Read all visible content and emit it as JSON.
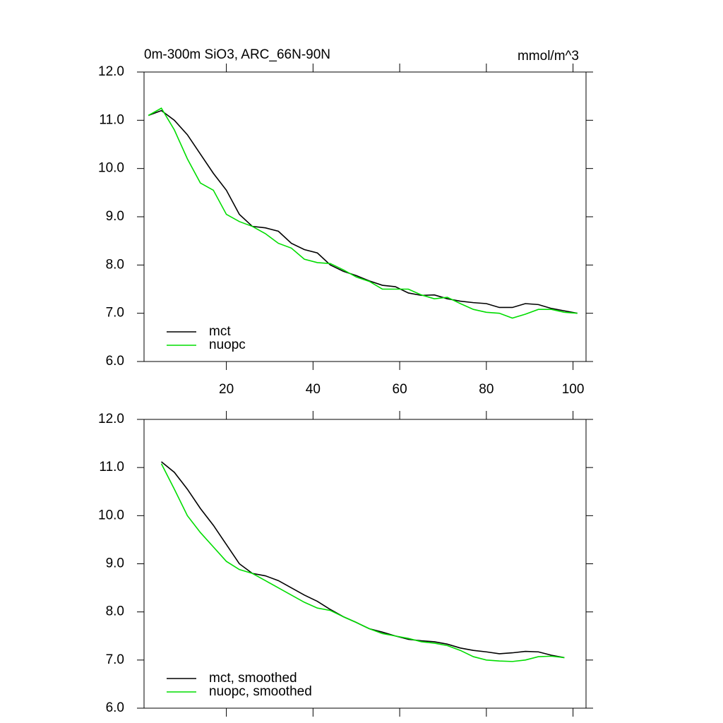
{
  "chart_data": [
    {
      "type": "line",
      "title": "0m-300m SiO3, ARC_66N-90N",
      "subtitle": "mmol/m^3",
      "x": [
        2,
        5,
        8,
        11,
        14,
        17,
        20,
        23,
        26,
        29,
        32,
        35,
        38,
        41,
        44,
        47,
        50,
        53,
        56,
        59,
        62,
        65,
        68,
        71,
        74,
        77,
        80,
        83,
        86,
        89,
        92,
        95,
        98,
        101
      ],
      "series": [
        {
          "name": "mct",
          "color": "#000000",
          "values": [
            11.1,
            11.2,
            11.0,
            10.7,
            10.3,
            9.9,
            9.55,
            9.05,
            8.8,
            8.77,
            8.7,
            8.45,
            8.32,
            8.25,
            8.0,
            7.87,
            7.78,
            7.67,
            7.58,
            7.55,
            7.42,
            7.37,
            7.38,
            7.3,
            7.25,
            7.22,
            7.2,
            7.12,
            7.12,
            7.2,
            7.18,
            7.1,
            7.05,
            7.0
          ]
        },
        {
          "name": "nuopc",
          "color": "#00dd00",
          "values": [
            11.1,
            11.25,
            10.8,
            10.2,
            9.7,
            9.55,
            9.05,
            8.9,
            8.8,
            8.65,
            8.45,
            8.35,
            8.12,
            8.05,
            8.03,
            7.9,
            7.75,
            7.66,
            7.5,
            7.5,
            7.5,
            7.38,
            7.3,
            7.33,
            7.2,
            7.08,
            7.02,
            7.0,
            6.9,
            6.98,
            7.08,
            7.08,
            7.02,
            7.0
          ]
        }
      ],
      "xlim": [
        1,
        103
      ],
      "xticks": [
        20,
        40,
        60,
        80,
        100
      ],
      "ylim": [
        6,
        12
      ],
      "yticks": [
        {
          "value": 6,
          "label": "6.0"
        },
        {
          "value": 7,
          "label": "7.0"
        },
        {
          "value": 8,
          "label": "8.0"
        },
        {
          "value": 9,
          "label": "9.0"
        },
        {
          "value": 10,
          "label": "10.0"
        },
        {
          "value": 11,
          "label": "11.0"
        },
        {
          "value": 12,
          "label": "12.0"
        }
      ],
      "legend": "lower-left"
    },
    {
      "type": "line",
      "x": [
        5,
        8,
        11,
        14,
        17,
        20,
        23,
        26,
        29,
        32,
        35,
        38,
        41,
        44,
        47,
        50,
        53,
        56,
        59,
        62,
        65,
        68,
        71,
        74,
        77,
        80,
        83,
        86,
        89,
        92,
        95,
        98
      ],
      "series": [
        {
          "name": "mct, smoothed",
          "color": "#000000",
          "values": [
            11.12,
            10.9,
            10.55,
            10.15,
            9.8,
            9.4,
            9.0,
            8.8,
            8.75,
            8.65,
            8.5,
            8.35,
            8.22,
            8.05,
            7.9,
            7.78,
            7.65,
            7.58,
            7.5,
            7.43,
            7.4,
            7.38,
            7.33,
            7.25,
            7.2,
            7.17,
            7.13,
            7.15,
            7.18,
            7.17,
            7.1,
            7.05
          ]
        },
        {
          "name": "nuopc, smoothed",
          "color": "#00dd00",
          "values": [
            11.08,
            10.55,
            10.0,
            9.65,
            9.35,
            9.05,
            8.88,
            8.8,
            8.65,
            8.5,
            8.35,
            8.2,
            8.08,
            8.03,
            7.9,
            7.78,
            7.65,
            7.55,
            7.5,
            7.45,
            7.38,
            7.35,
            7.3,
            7.2,
            7.07,
            7.0,
            6.98,
            6.97,
            7.0,
            7.07,
            7.08,
            7.05
          ]
        }
      ],
      "xlim": [
        1,
        103
      ],
      "xticks": [
        20,
        40,
        60,
        80,
        100
      ],
      "ylim": [
        6,
        12
      ],
      "yticks": [
        {
          "value": 6,
          "label": "6.0"
        },
        {
          "value": 7,
          "label": "7.0"
        },
        {
          "value": 8,
          "label": "8.0"
        },
        {
          "value": 9,
          "label": "9.0"
        },
        {
          "value": 10,
          "label": "10.0"
        },
        {
          "value": 11,
          "label": "11.0"
        },
        {
          "value": 12,
          "label": "12.0"
        }
      ],
      "legend": "lower-left"
    }
  ]
}
